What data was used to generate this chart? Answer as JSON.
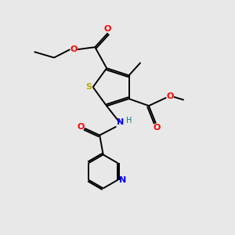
{
  "bg_color": "#e8e8e8",
  "colors": {
    "C": "#000000",
    "O": "#ff0000",
    "N": "#0000ff",
    "S": "#bbaa00",
    "H": "#008080",
    "bond": "#000000"
  },
  "figsize": [
    3.0,
    3.0
  ],
  "dpi": 100
}
